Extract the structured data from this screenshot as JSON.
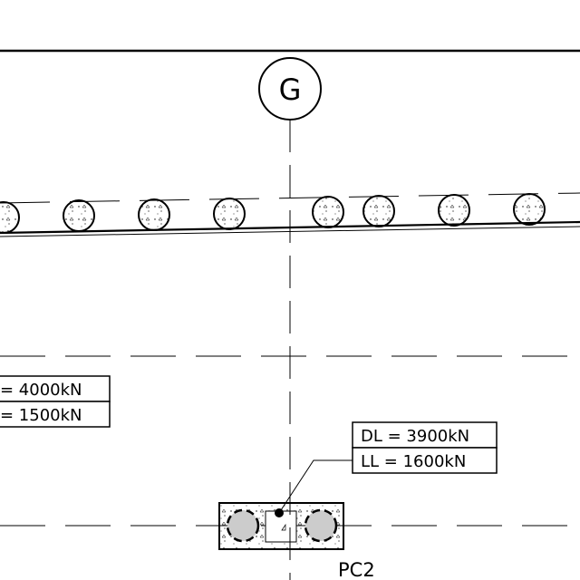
{
  "grid": {
    "label": "G"
  },
  "loads_left": {
    "line1": "= 4000kN",
    "line2": "= 1500kN"
  },
  "loads_pc2": {
    "dead_load": "DL = 3900kN",
    "live_load": "LL = 1600kN"
  },
  "pile_cap": {
    "label": "PC2"
  },
  "colors": {
    "line": "#000000",
    "pile_fill": "#cccccc",
    "background": "#ffffff"
  }
}
